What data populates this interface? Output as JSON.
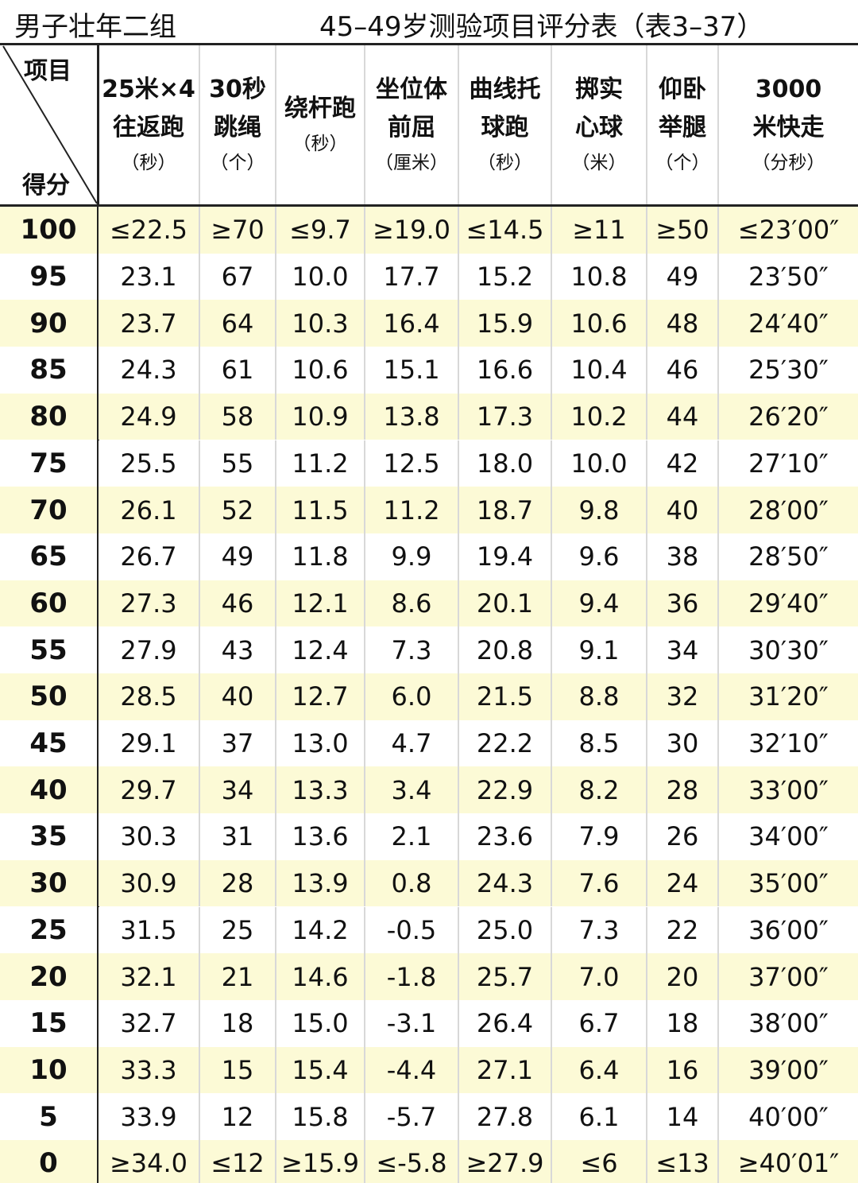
{
  "header": {
    "group": "男子壮年二组",
    "title": "45–49岁测验项目评分表（表3–37）"
  },
  "table": {
    "corner": {
      "item": "项目",
      "score": "得分"
    },
    "columns": [
      [
        "25米×4",
        "往返跑",
        "（秒）"
      ],
      [
        "30秒",
        "跳绳",
        "（个）"
      ],
      [
        "绕杆跑",
        "（秒）"
      ],
      [
        "坐位体",
        "前屈",
        "（厘米）"
      ],
      [
        "曲线托",
        "球跑",
        "（秒）"
      ],
      [
        "掷实",
        "心球",
        "（米）"
      ],
      [
        "仰卧",
        "举腿",
        "（个）"
      ],
      [
        "3000",
        "米快走",
        "（分秒）"
      ]
    ],
    "rows": [
      [
        "100",
        "≤22.5",
        "≥70",
        "≤9.7",
        "≥19.0",
        "≤14.5",
        "≥11",
        "≥50",
        "≤23′00″"
      ],
      [
        "95",
        "23.1",
        "67",
        "10.0",
        "17.7",
        "15.2",
        "10.8",
        "49",
        "23′50″"
      ],
      [
        "90",
        "23.7",
        "64",
        "10.3",
        "16.4",
        "15.9",
        "10.6",
        "48",
        "24′40″"
      ],
      [
        "85",
        "24.3",
        "61",
        "10.6",
        "15.1",
        "16.6",
        "10.4",
        "46",
        "25′30″"
      ],
      [
        "80",
        "24.9",
        "58",
        "10.9",
        "13.8",
        "17.3",
        "10.2",
        "44",
        "26′20″"
      ],
      [
        "75",
        "25.5",
        "55",
        "11.2",
        "12.5",
        "18.0",
        "10.0",
        "42",
        "27′10″"
      ],
      [
        "70",
        "26.1",
        "52",
        "11.5",
        "11.2",
        "18.7",
        "9.8",
        "40",
        "28′00″"
      ],
      [
        "65",
        "26.7",
        "49",
        "11.8",
        "9.9",
        "19.4",
        "9.6",
        "38",
        "28′50″"
      ],
      [
        "60",
        "27.3",
        "46",
        "12.1",
        "8.6",
        "20.1",
        "9.4",
        "36",
        "29′40″"
      ],
      [
        "55",
        "27.9",
        "43",
        "12.4",
        "7.3",
        "20.8",
        "9.1",
        "34",
        "30′30″"
      ],
      [
        "50",
        "28.5",
        "40",
        "12.7",
        "6.0",
        "21.5",
        "8.8",
        "32",
        "31′20″"
      ],
      [
        "45",
        "29.1",
        "37",
        "13.0",
        "4.7",
        "22.2",
        "8.5",
        "30",
        "32′10″"
      ],
      [
        "40",
        "29.7",
        "34",
        "13.3",
        "3.4",
        "22.9",
        "8.2",
        "28",
        "33′00″"
      ],
      [
        "35",
        "30.3",
        "31",
        "13.6",
        "2.1",
        "23.6",
        "7.9",
        "26",
        "34′00″"
      ],
      [
        "30",
        "30.9",
        "28",
        "13.9",
        "0.8",
        "24.3",
        "7.6",
        "24",
        "35′00″"
      ],
      [
        "25",
        "31.5",
        "25",
        "14.2",
        "-0.5",
        "25.0",
        "7.3",
        "22",
        "36′00″"
      ],
      [
        "20",
        "32.1",
        "21",
        "14.6",
        "-1.8",
        "25.7",
        "7.0",
        "20",
        "37′00″"
      ],
      [
        "15",
        "32.7",
        "18",
        "15.0",
        "-3.1",
        "26.4",
        "6.7",
        "18",
        "38′00″"
      ],
      [
        "10",
        "33.3",
        "15",
        "15.4",
        "-4.4",
        "27.1",
        "6.4",
        "16",
        "39′00″"
      ],
      [
        "5",
        "33.9",
        "12",
        "15.8",
        "-5.7",
        "27.8",
        "6.1",
        "14",
        "40′00″"
      ],
      [
        "0",
        "≥34.0",
        "≤12",
        "≥15.9",
        "≤-5.8",
        "≥27.9",
        "≤6",
        "≤13",
        "≥40′01″"
      ]
    ]
  }
}
